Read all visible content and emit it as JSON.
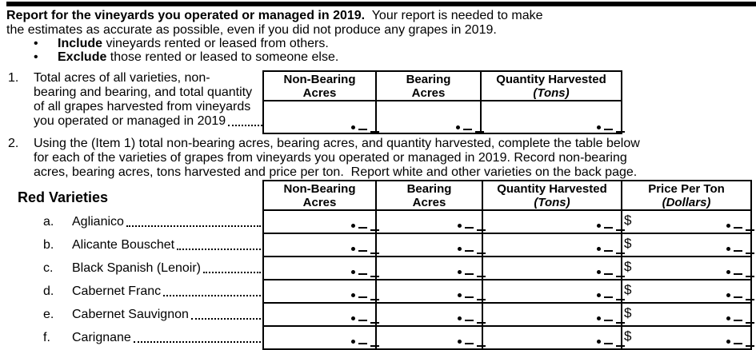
{
  "intro": {
    "bold": "Report for the vineyards you operated or managed in 2019.",
    "rest": "  Your report is needed to make",
    "line2": "the estimates as accurate as possible, even if you did not produce any grapes in 2019.",
    "bullets": [
      {
        "bold": "Include",
        "rest": " vineyards rented or leased from others."
      },
      {
        "bold": "Exclude",
        "rest": " those rented or leased to someone else."
      }
    ]
  },
  "item1": {
    "number": "1.",
    "line1": "Total acres of all varieties, non-",
    "line2": "bearing and bearing, and total quantity",
    "line3": "of all grapes harvested from vineyards",
    "line4": "you operated or managed in 2019",
    "columns": [
      {
        "top": "Non-Bearing",
        "bottom": "Acres"
      },
      {
        "top": "Bearing",
        "bottom": "Acres"
      },
      {
        "top": "Quantity Harvested",
        "bottom": "(Tons)"
      }
    ]
  },
  "item2": {
    "number": "2.",
    "line1": "Using the (Item 1) total non-bearing acres, bearing acres, and quantity harvested, complete the table below",
    "line2": "for each of the varieties of grapes from vineyards you operated or managed in 2019. Record non-bearing",
    "line3": "acres, bearing acres, tons harvested and price per ton.  Report white and other varieties on the back page."
  },
  "red": {
    "heading": "Red Varieties",
    "columns": [
      {
        "top": "Non-Bearing",
        "bottom": "Acres"
      },
      {
        "top": "Bearing",
        "bottom": "Acres"
      },
      {
        "top": "Quantity Harvested",
        "bottom": "(Tons)"
      },
      {
        "top": "Price Per Ton",
        "bottom": "(Dollars)"
      }
    ],
    "dollar": "$",
    "rows": [
      {
        "letter": "a.",
        "name": "Aglianico"
      },
      {
        "letter": "b.",
        "name": "Alicante Bouschet"
      },
      {
        "letter": "c.",
        "name": "Black Spanish (Lenoir)"
      },
      {
        "letter": "d.",
        "name": "Cabernet Franc"
      },
      {
        "letter": "e.",
        "name": "Cabernet Sauvignon"
      },
      {
        "letter": "f.",
        "name": "Carignane"
      }
    ]
  },
  "entry": {
    "decimal_dot": "•"
  },
  "colors": {
    "ink": "#000000",
    "paper": "#ffffff"
  }
}
